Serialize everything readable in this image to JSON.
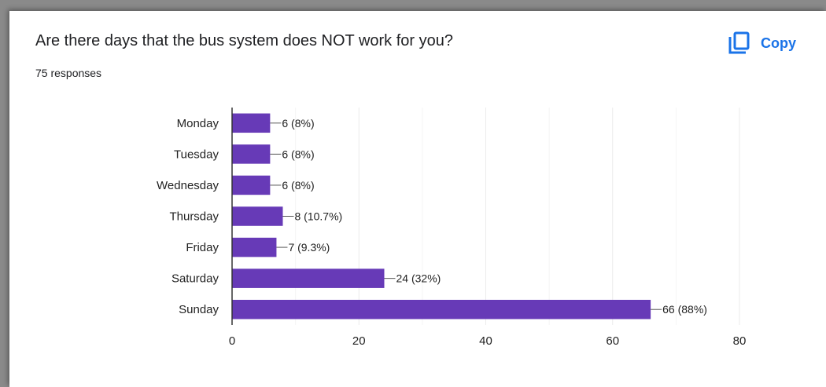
{
  "question": {
    "title": "Are there days that the bus system does NOT work for you?",
    "responses": "75 responses"
  },
  "actions": {
    "copy_label": "Copy",
    "copy_icon": "copy-icon"
  },
  "colors": {
    "bar": "#673ab7",
    "accent": "#1a73e8",
    "grid": "#ebebeb",
    "axis": "#333333"
  },
  "chart_data": {
    "type": "bar",
    "orientation": "horizontal",
    "categories": [
      "Monday",
      "Tuesday",
      "Wednesday",
      "Thursday",
      "Friday",
      "Saturday",
      "Sunday"
    ],
    "values": [
      6,
      6,
      6,
      8,
      7,
      24,
      66
    ],
    "labels": [
      "6 (8%)",
      "6 (8%)",
      "6 (8%)",
      "8 (10.7%)",
      "7 (9.3%)",
      "24 (32%)",
      "66 (88%)"
    ],
    "xticks": [
      "0",
      "20",
      "40",
      "60",
      "80"
    ],
    "xlim": [
      0,
      80
    ],
    "grid": true
  }
}
